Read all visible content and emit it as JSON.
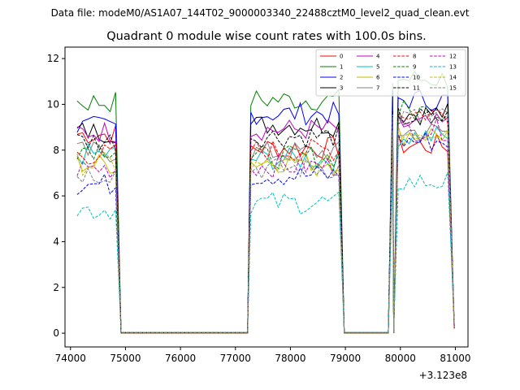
{
  "chart_data": {
    "type": "line",
    "suptitle": "Data file: modeM0/AS1A07_144T02_9000003340_22488cztM0_level2_quad_clean.evt",
    "title": "Quadrant 0 module wise count rates with 100.0s bins.",
    "xlabel": "",
    "ylabel": "",
    "x_offset_label": "+3.123e8",
    "xlim": [
      73900,
      81230
    ],
    "ylim": [
      -0.6,
      12.5
    ],
    "xticks": [
      74000,
      75000,
      76000,
      77000,
      78000,
      79000,
      80000,
      81000
    ],
    "xtick_labels": [
      "74000",
      "75000",
      "76000",
      "77000",
      "78000",
      "79000",
      "80000",
      "81000"
    ],
    "yticks": [
      0,
      2,
      4,
      6,
      8,
      10,
      12
    ],
    "ytick_labels": [
      "0",
      "2",
      "4",
      "6",
      "8",
      "10",
      "12"
    ],
    "legend_position": "upper-right",
    "segments": [
      {
        "start": 74120,
        "step": 100,
        "count": 8
      },
      {
        "start": 77280,
        "step": 100,
        "count": 17
      },
      {
        "start": 79860,
        "step": 100,
        "count": 11
      }
    ],
    "gap_x": [
      74920,
      75020,
      75120,
      75220,
      75320,
      75420,
      75520,
      75620,
      75720,
      75820,
      75920,
      76020,
      76120,
      76220,
      76320,
      76420,
      76520,
      76620,
      76720,
      76820,
      76920,
      77020,
      77120,
      77220,
      78980,
      79080,
      79180,
      79280,
      79380,
      79480,
      79580,
      79680,
      79780,
      79880,
      80980
    ],
    "series": [
      {
        "name": "0",
        "color": "#ff0000",
        "dash": "solid",
        "levels": [
          8.7,
          8.1,
          8.2
        ]
      },
      {
        "name": "1",
        "color": "#008000",
        "dash": "solid",
        "levels": [
          10.1,
          10.2,
          11.1
        ]
      },
      {
        "name": "2",
        "color": "#0000ff",
        "dash": "solid",
        "levels": [
          9.0,
          9.6,
          10.2
        ]
      },
      {
        "name": "3",
        "color": "#000000",
        "dash": "solid",
        "levels": [
          8.8,
          9.1,
          9.6
        ]
      },
      {
        "name": "4",
        "color": "#c000c0",
        "dash": "solid",
        "levels": [
          8.8,
          8.9,
          9.1
        ]
      },
      {
        "name": "5",
        "color": "#00bfbf",
        "dash": "solid",
        "levels": [
          7.8,
          7.6,
          8.6
        ]
      },
      {
        "name": "6",
        "color": "#bfbf00",
        "dash": "solid",
        "levels": [
          7.4,
          7.5,
          8.7
        ]
      },
      {
        "name": "7",
        "color": "#808080",
        "dash": "solid",
        "levels": [
          7.9,
          7.9,
          8.8
        ]
      },
      {
        "name": "8",
        "color": "#ff0000",
        "dash": "dashed",
        "levels": [
          7.8,
          8.0,
          9.6
        ]
      },
      {
        "name": "9",
        "color": "#008000",
        "dash": "dashed",
        "levels": [
          8.1,
          7.7,
          9.7
        ]
      },
      {
        "name": "10",
        "color": "#0000ff",
        "dash": "dashed",
        "levels": [
          6.5,
          6.9,
          8.4
        ]
      },
      {
        "name": "11",
        "color": "#000000",
        "dash": "dashed",
        "levels": [
          8.4,
          8.6,
          9.4
        ]
      },
      {
        "name": "12",
        "color": "#c000c0",
        "dash": "dashed",
        "levels": [
          7.2,
          7.3,
          8.9
        ]
      },
      {
        "name": "13",
        "color": "#00bfbf",
        "dash": "dashed",
        "levels": [
          5.4,
          5.7,
          6.6
        ]
      },
      {
        "name": "14",
        "color": "#bfbf00",
        "dash": "dashed",
        "levels": [
          7.4,
          7.3,
          8.9
        ]
      },
      {
        "name": "15",
        "color": "#808080",
        "dash": "dashed",
        "levels": [
          7.0,
          7.2,
          9.4
        ]
      }
    ]
  }
}
